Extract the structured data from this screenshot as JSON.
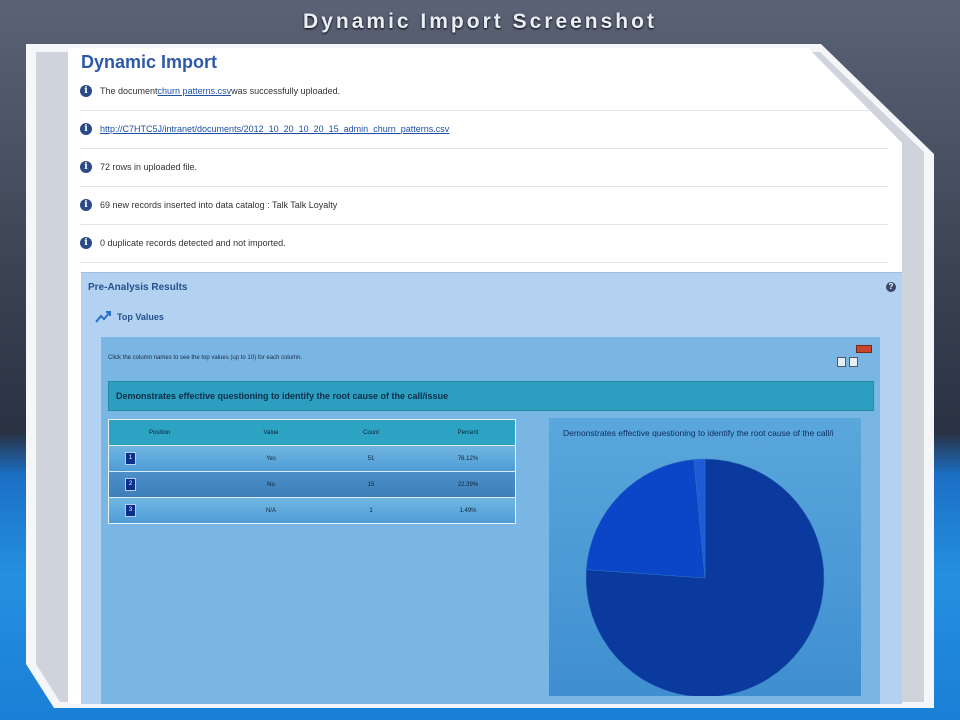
{
  "slide": {
    "title": "Dynamic Import Screenshot"
  },
  "page": {
    "title": "Dynamic Import"
  },
  "messages": [
    {
      "prefix": "The document ",
      "link": "churn patterns.csv",
      "suffix": " was successfully uploaded."
    },
    {
      "link": "http://C7HTC5J/intranet/documents/2012_10_20_10_20_15_admin_churn_patterns.csv"
    },
    {
      "text": "72 rows in uploaded file."
    },
    {
      "text": "69 new records inserted into data catalog : Talk Talk Loyalty"
    },
    {
      "text": "0 duplicate records detected and not imported."
    }
  ],
  "panel": {
    "title": "Pre-Analysis Results",
    "section": "Top Values",
    "instruction": "Click the column names to see the top values (up to 10) for each column.",
    "column_title": "Demonstrates effective questioning to identify the root cause of the call/issue",
    "table": {
      "headers": [
        "Position",
        "Value",
        "Count",
        "Percent"
      ],
      "rows": [
        {
          "position": "1",
          "value": "Yes",
          "count": "51",
          "percent": "76.12%"
        },
        {
          "position": "2",
          "value": "No",
          "count": "15",
          "percent": "22.39%"
        },
        {
          "position": "3",
          "value": "N/A",
          "count": "1",
          "percent": "1.49%"
        }
      ]
    }
  },
  "chart_data": {
    "type": "pie",
    "title": "Demonstrates effective questioning to identify the root cause of the call/i",
    "slices": [
      {
        "label": "Yes",
        "value": 76.12,
        "color": "#0a3a9e"
      },
      {
        "label": "No",
        "value": 22.39,
        "color": "#0b46c8"
      },
      {
        "label": "N/A",
        "value": 1.49,
        "color": "#1e5bd6"
      }
    ]
  }
}
